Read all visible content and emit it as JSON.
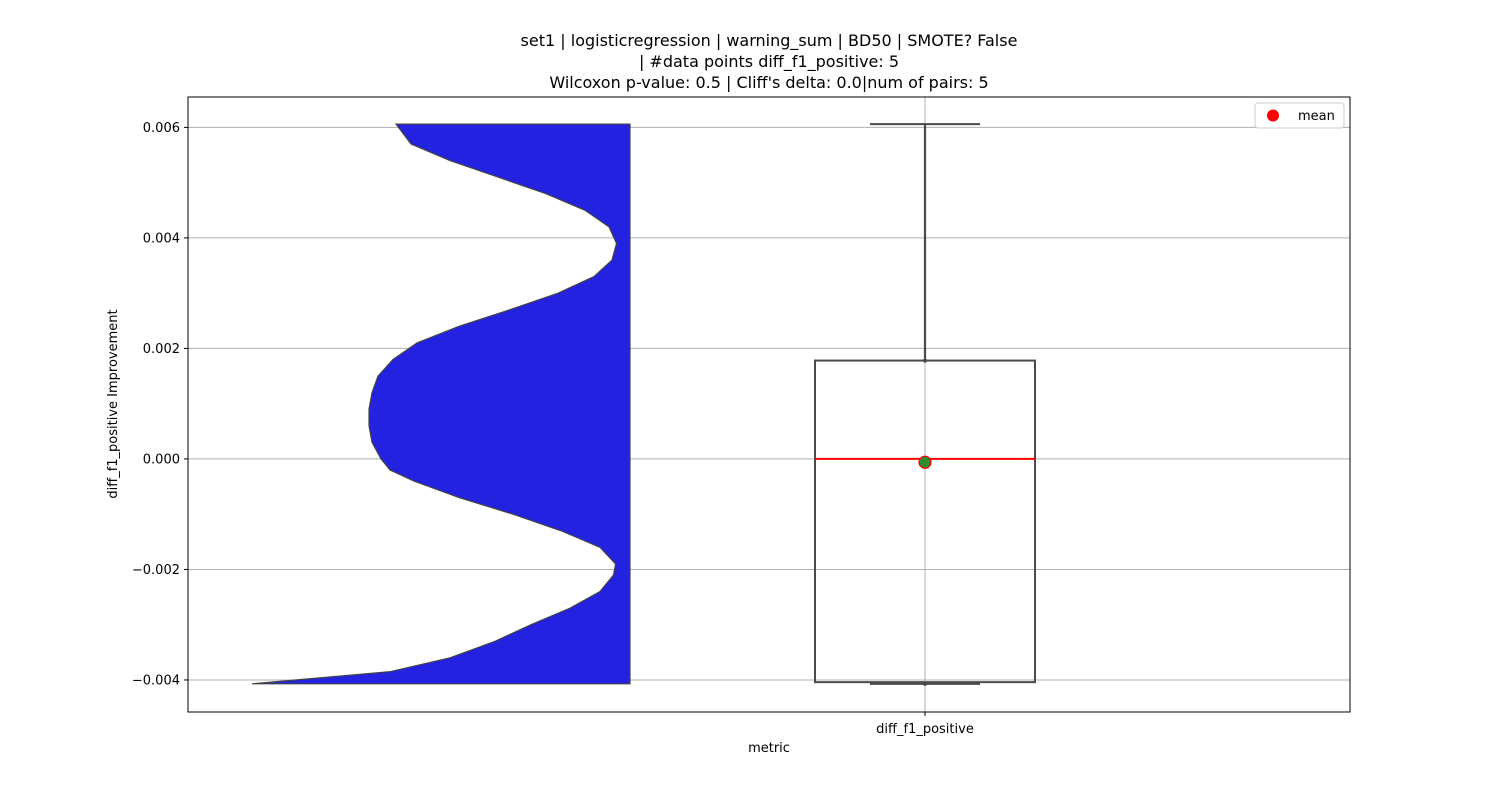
{
  "chart_data": {
    "type": "violin+box",
    "title_lines": [
      "set1 | logisticregression | warning_sum | BD50 | SMOTE? False",
      "| #data points diff_f1_positive: 5",
      "Wilcoxon p-value: 0.5 | Cliff's delta: 0.0|num of pairs: 5"
    ],
    "xlabel": "metric",
    "ylabel": "diff_f1_positive Improvement",
    "categories": [
      "diff_f1_positive"
    ],
    "ylim": [
      -0.00458,
      0.00655
    ],
    "yticks": [
      -0.004,
      -0.002,
      0.0,
      0.002,
      0.004,
      0.006
    ],
    "ytick_labels": [
      "−0.004",
      "−0.002",
      "0.000",
      "0.002",
      "0.004",
      "0.006"
    ],
    "grid": true,
    "legend": {
      "position": "top-right",
      "entries": [
        {
          "label": "mean",
          "color": "#ff0000",
          "marker": "circle"
        }
      ]
    },
    "violin": {
      "color": "#2222e0",
      "edge_color": "#444444",
      "side": "left",
      "y_min": -0.00407,
      "y_max": 0.00606,
      "density_profile": [
        [
          -0.00407,
          1.26
        ],
        [
          -0.00385,
          0.8
        ],
        [
          -0.0036,
          0.6
        ],
        [
          -0.0033,
          0.45
        ],
        [
          -0.003,
          0.33
        ],
        [
          -0.0027,
          0.2
        ],
        [
          -0.0024,
          0.1
        ],
        [
          -0.0021,
          0.055
        ],
        [
          -0.0019,
          0.048
        ],
        [
          -0.0016,
          0.1
        ],
        [
          -0.0013,
          0.23
        ],
        [
          -0.001,
          0.39
        ],
        [
          -0.0007,
          0.57
        ],
        [
          -0.0004,
          0.72
        ],
        [
          -0.0002,
          0.8
        ],
        [
          0.0,
          0.83
        ],
        [
          0.0003,
          0.86
        ],
        [
          0.0006,
          0.87
        ],
        [
          0.0009,
          0.87
        ],
        [
          0.0012,
          0.86
        ],
        [
          0.0015,
          0.84
        ],
        [
          0.0018,
          0.79
        ],
        [
          0.0021,
          0.71
        ],
        [
          0.0024,
          0.57
        ],
        [
          0.0027,
          0.4
        ],
        [
          0.003,
          0.24
        ],
        [
          0.0033,
          0.12
        ],
        [
          0.0036,
          0.06
        ],
        [
          0.0039,
          0.045
        ],
        [
          0.0042,
          0.07
        ],
        [
          0.0045,
          0.15
        ],
        [
          0.0048,
          0.28
        ],
        [
          0.0051,
          0.44
        ],
        [
          0.0054,
          0.6
        ],
        [
          0.0057,
          0.73
        ],
        [
          0.00606,
          0.78
        ]
      ]
    },
    "box": {
      "category": "diff_f1_positive",
      "whisker_low": -0.00407,
      "q1": -0.00404,
      "median": 0.0,
      "q3": 0.00178,
      "whisker_high": 0.00606,
      "mean": -6e-05,
      "median_color": "#ff0000",
      "mean_marker_face": "#2e8b2e",
      "mean_marker_edge": "#ff0000"
    }
  }
}
